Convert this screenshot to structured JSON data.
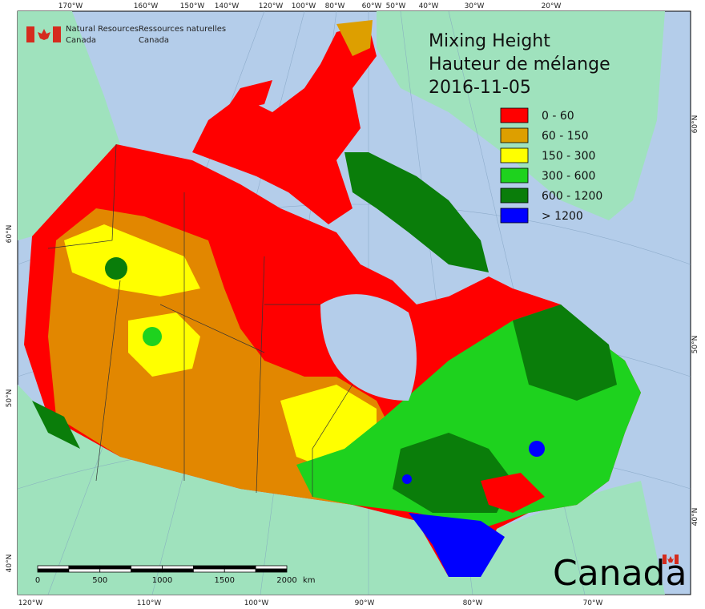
{
  "header": {
    "english": [
      "Natural Resources",
      "Canada"
    ],
    "french": [
      "Ressources naturelles",
      "Canada"
    ]
  },
  "title": [
    "Mixing Height",
    "Hauteur de mélange",
    "2016-11-05"
  ],
  "legend": [
    {
      "label": "0 - 60",
      "color": "#ff0000"
    },
    {
      "label": "60 - 150",
      "color": "#dd9f00"
    },
    {
      "label": "150 - 300",
      "color": "#ffff00"
    },
    {
      "label": "300 - 600",
      "color": "#1ed21e"
    },
    {
      "label": "600 - 1200",
      "color": "#0a7d0a"
    },
    {
      "label": "> 1200",
      "color": "#0000ff"
    }
  ],
  "graticule": {
    "top": [
      "170°W",
      "160°W",
      "150°W",
      "140°W",
      "120°W",
      "100°W",
      "80°W",
      "60°W",
      "50°W",
      "40°W",
      "30°W",
      "20°W"
    ],
    "bottom": [
      "120°W",
      "110°W",
      "100°W",
      "90°W",
      "80°W",
      "70°W"
    ],
    "left": [
      "60°N",
      "50°N",
      "40°N"
    ],
    "right": [
      "60°N",
      "50°N",
      "40°N"
    ]
  },
  "scale_bar": {
    "ticks": [
      "0",
      "500",
      "1000",
      "1500",
      "2000"
    ],
    "unit": "km"
  },
  "wordmark": "Canada"
}
